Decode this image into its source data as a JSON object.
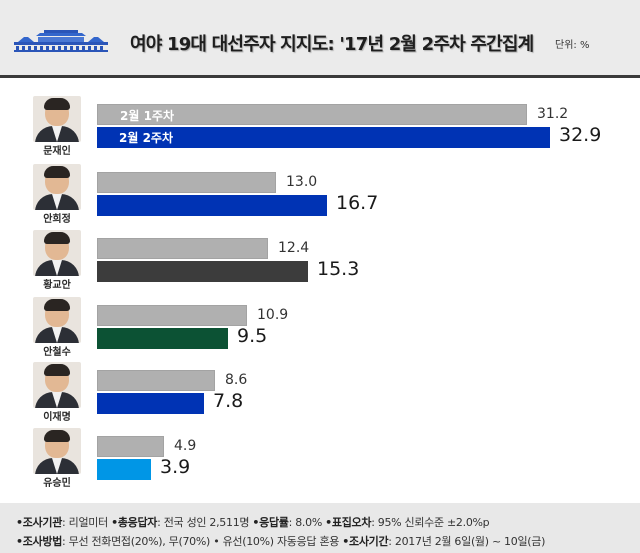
{
  "header": {
    "title": "여야 19대 대선주자 지지도: '17년 2월 2주차 주간집계",
    "unit": "단위: %",
    "logo_icon": "blue-house-icon",
    "background": "#ebebeb"
  },
  "legend": {
    "prev_label": "2월 1주차",
    "curr_label": "2월 2주차"
  },
  "candidates": [
    {
      "name": "문재인",
      "prev": "31.2",
      "curr": "32.9",
      "color": "#0033b4"
    },
    {
      "name": "안희정",
      "prev": "13.0",
      "curr": "16.7",
      "color": "#0033b4"
    },
    {
      "name": "황교안",
      "prev": "12.4",
      "curr": "15.3",
      "color": "#3c3c3c"
    },
    {
      "name": "안철수",
      "prev": "10.9",
      "curr": "9.5",
      "color": "#0c5234"
    },
    {
      "name": "이재명",
      "prev": "8.6",
      "curr": "7.8",
      "color": "#0033b4"
    },
    {
      "name": "유승민",
      "prev": "4.9",
      "curr": "3.9",
      "color": "#0096e6"
    }
  ],
  "footer": {
    "line1": [
      {
        "key": "•조사기관",
        "value": ": 리얼미터 "
      },
      {
        "key": "•총응답자",
        "value": ": 전국 성인 2,511명 "
      },
      {
        "key": "•응답률",
        "value": ": 8.0% "
      },
      {
        "key": "•표집오차",
        "value": ": 95% 신뢰수준 ±2.0%p"
      }
    ],
    "line2": [
      {
        "key": "•조사방법",
        "value": ": 무선 전화면접(20%), 무(70%) • 유선(10%) 자동응답 혼용 "
      },
      {
        "key": "•조사기간",
        "value": ": 2017년 2월 6일(월) ~ 10일(금)"
      }
    ]
  },
  "chart_data": {
    "type": "bar",
    "orientation": "horizontal",
    "title": "여야 19대 대선주자 지지도: '17년 2월 2주차 주간집계",
    "unit": "%",
    "categories": [
      "문재인",
      "안희정",
      "황교안",
      "안철수",
      "이재명",
      "유승민"
    ],
    "series": [
      {
        "name": "2월 1주차",
        "values": [
          31.2,
          13.0,
          12.4,
          10.9,
          8.6,
          4.9
        ],
        "color": "#b0b0b0"
      },
      {
        "name": "2월 2주차",
        "values": [
          32.9,
          16.7,
          15.3,
          9.5,
          7.8,
          3.9
        ],
        "colors": [
          "#0033b4",
          "#0033b4",
          "#3c3c3c",
          "#0c5234",
          "#0033b4",
          "#0096e6"
        ]
      }
    ],
    "xlabel": "",
    "ylabel": "",
    "grid": false,
    "legend_position": "inside-first-bar",
    "source": "리얼미터"
  }
}
